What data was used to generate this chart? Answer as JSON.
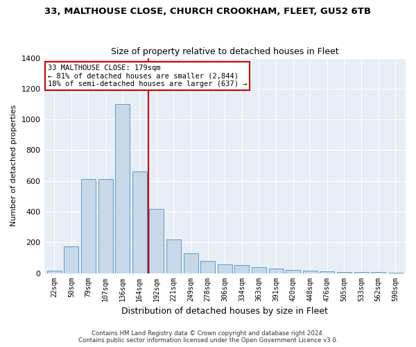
{
  "title1": "33, MALTHOUSE CLOSE, CHURCH CROOKHAM, FLEET, GU52 6TB",
  "title2": "Size of property relative to detached houses in Fleet",
  "xlabel": "Distribution of detached houses by size in Fleet",
  "ylabel": "Number of detached properties",
  "categories": [
    "22sqm",
    "50sqm",
    "79sqm",
    "107sqm",
    "136sqm",
    "164sqm",
    "192sqm",
    "221sqm",
    "249sqm",
    "278sqm",
    "306sqm",
    "334sqm",
    "363sqm",
    "391sqm",
    "420sqm",
    "448sqm",
    "476sqm",
    "505sqm",
    "533sqm",
    "562sqm",
    "590sqm"
  ],
  "values": [
    18,
    175,
    610,
    610,
    1100,
    660,
    420,
    220,
    130,
    80,
    55,
    50,
    38,
    28,
    20,
    15,
    10,
    8,
    5,
    5,
    3
  ],
  "bar_color": "#c8d8e8",
  "bar_edge_color": "#5b9bd5",
  "vline_color": "#cc0000",
  "annotation_text": "33 MALTHOUSE CLOSE: 179sqm\n← 81% of detached houses are smaller (2,844)\n18% of semi-detached houses are larger (637) →",
  "annotation_box_color": "#cc0000",
  "footer1": "Contains HM Land Registry data © Crown copyright and database right 2024.",
  "footer2": "Contains public sector information licensed under the Open Government Licence v3.0.",
  "ylim": [
    0,
    1400
  ],
  "yticks": [
    0,
    200,
    400,
    600,
    800,
    1000,
    1200,
    1400
  ],
  "plot_bg_color": "#e8eef5",
  "grid_color": "#ffffff"
}
